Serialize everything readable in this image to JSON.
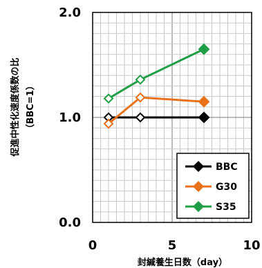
{
  "chart_data": {
    "type": "line",
    "xlabel": "封緘養生日数（day）",
    "ylabel": "促進中性化速度係数の比",
    "ylabel_sub": "（BBC=1）",
    "xlim": [
      0,
      10
    ],
    "ylim": [
      0.0,
      2.0
    ],
    "x_ticks": [
      "0",
      "5",
      "10"
    ],
    "y_ticks": [
      "0.0",
      "1.0",
      "2.0"
    ],
    "x_tick_values": [
      0,
      5,
      10
    ],
    "y_tick_values": [
      0.0,
      1.0,
      2.0
    ],
    "grid": true,
    "legend_position": "bottom-right",
    "series": [
      {
        "name": "BBC",
        "color": "#000000",
        "x": [
          1,
          3,
          7
        ],
        "y": [
          1.0,
          1.0,
          1.0
        ],
        "markers": [
          "open",
          "open",
          "filled"
        ]
      },
      {
        "name": "G30",
        "color": "#e8711a",
        "x": [
          1,
          3,
          7
        ],
        "y": [
          0.94,
          1.19,
          1.15
        ],
        "markers": [
          "open",
          "open",
          "filled"
        ]
      },
      {
        "name": "S35",
        "color": "#1f9e45",
        "x": [
          1,
          3,
          7
        ],
        "y": [
          1.18,
          1.36,
          1.65
        ],
        "markers": [
          "open",
          "open",
          "filled"
        ]
      }
    ]
  }
}
